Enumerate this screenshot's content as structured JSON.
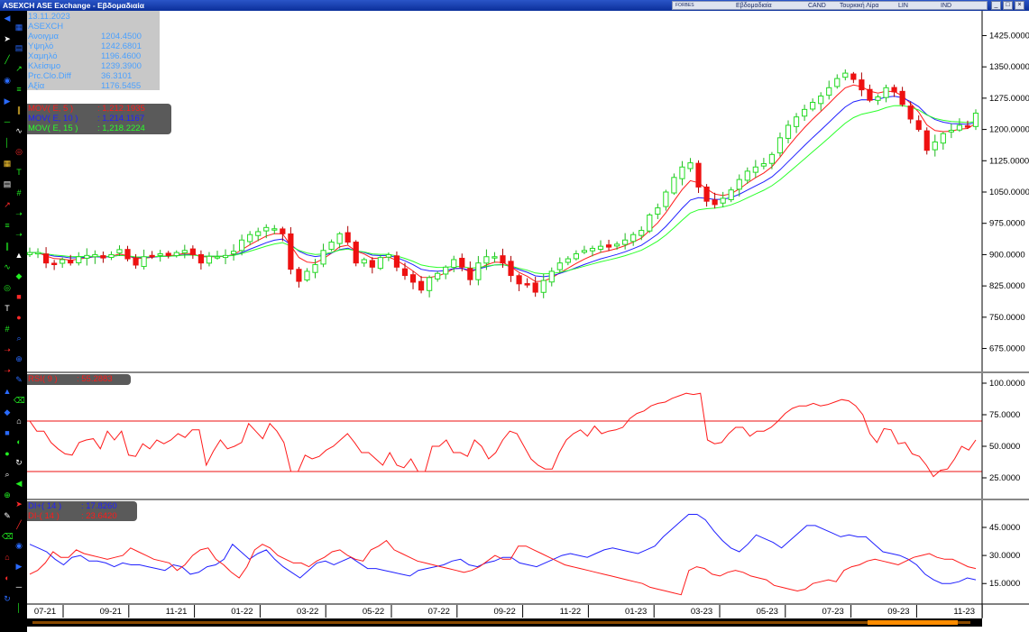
{
  "window": {
    "title": "ASEXCH ASE Exchange - Εβδομαδιαία",
    "status": {
      "source": "FORBES",
      "period": "Εβδομαδιαία",
      "chart_style": "CAND",
      "currency": "Τουρκική Λίρα",
      "scale": "LIN",
      "mode": "IND"
    },
    "buttons": [
      "_",
      "□",
      "×"
    ]
  },
  "toolbar_icons": [
    "arrow-left-icon",
    "pointer-icon",
    "trend-line-icon",
    "globe-icon",
    "arrow-right-icon",
    "hline-icon",
    "vline-icon",
    "calendar-icon",
    "doc-icon",
    "ray-icon",
    "fib-icon",
    "channel-icon",
    "wave-icon",
    "cycle-icon",
    "text-icon",
    "grid-icon",
    "arrow-icon",
    "arrow-icon",
    "triangle-icon",
    "diamond-icon",
    "square-icon",
    "circle-icon",
    "magnify-icon",
    "zoom-icon",
    "pencil-icon",
    "eraser-icon",
    "lock-icon",
    "color-icon",
    "refresh-icon"
  ],
  "ohlc_box": {
    "date": "13.11.2023",
    "symbol": "ASEXCH",
    "rows": [
      {
        "label": "Ανοιγμα",
        "value": "1204.4500"
      },
      {
        "label": "Υψηλό",
        "value": "1242.6801"
      },
      {
        "label": "Χαμηλό",
        "value": "1196.4600"
      },
      {
        "label": "Κλείσιμο",
        "value": "1239.3900"
      },
      {
        "label": "Prc.Clo.Diff",
        "value": "36.3101"
      },
      {
        "label": "Αξία",
        "value": "1176.5455"
      }
    ]
  },
  "ma_box": {
    "rows": [
      {
        "label": "MOV( E, 5 )",
        "value": ": 1,212.1935",
        "color": "#ff1a1a"
      },
      {
        "label": "MOV( E, 10 )",
        "value": ": 1,214.1167",
        "color": "#2020ff"
      },
      {
        "label": "MOV( E, 15 )",
        "value": ": 1,218.2224",
        "color": "#2aff2a"
      }
    ]
  },
  "rsi_box": {
    "label": "RSI( 9 )",
    "value": ": 55.2883",
    "color": "#ff1a1a"
  },
  "dmi_box": {
    "rows": [
      {
        "label": "DI+( 14 )",
        "value": ": 17.8260",
        "color": "#2020ff"
      },
      {
        "label": "DI-( 14 )",
        "value": ": 23.6420",
        "color": "#ff1a1a"
      }
    ]
  },
  "chart_data": [
    {
      "type": "candlestick",
      "title": "ASEXCH",
      "y_ticks": [
        675,
        750,
        825,
        900,
        975,
        1050,
        1125,
        1200,
        1275,
        1350,
        1425
      ],
      "ylim": [
        620,
        1480
      ],
      "x_ticks": [
        "07-21",
        "09-21",
        "11-21",
        "01-22",
        "03-22",
        "05-22",
        "07-22",
        "09-22",
        "11-22",
        "01-23",
        "03-23",
        "05-23",
        "07-23",
        "09-23",
        "11-23"
      ],
      "grid": false,
      "series": [
        {
          "name": "MOV( E, 5 )",
          "color": "#ff1a1a"
        },
        {
          "name": "MOV( E, 10 )",
          "color": "#2020ff"
        },
        {
          "name": "MOV( E, 15 )",
          "color": "#2aff2a"
        }
      ],
      "close": [
        905,
        905,
        880,
        878,
        888,
        880,
        895,
        898,
        900,
        892,
        900,
        912,
        890,
        875,
        895,
        897,
        902,
        898,
        905,
        910,
        900,
        880,
        896,
        895,
        898,
        908,
        935,
        948,
        955,
        965,
        962,
        950,
        865,
        836,
        860,
        876,
        910,
        930,
        950,
        930,
        880,
        888,
        870,
        893,
        900,
        870,
        850,
        834,
        815,
        845,
        855,
        870,
        888,
        870,
        840,
        880,
        895,
        895,
        880,
        850,
        830,
        830,
        810,
        838,
        860,
        880,
        890,
        902,
        910,
        915,
        920,
        918,
        925,
        935,
        948,
        958,
        995,
        1012,
        1050,
        1085,
        1110,
        1120,
        1062,
        1028,
        1020,
        1035,
        1055,
        1080,
        1100,
        1110,
        1118,
        1140,
        1180,
        1210,
        1230,
        1248,
        1265,
        1280,
        1300,
        1322,
        1335,
        1320,
        1295,
        1270,
        1278,
        1300,
        1290,
        1260,
        1225,
        1200,
        1150,
        1170,
        1190,
        1198,
        1210,
        1206,
        1239
      ]
    },
    {
      "type": "line",
      "title": "RSI( 9 )",
      "y_ticks": [
        25,
        50,
        75,
        100
      ],
      "ylim": [
        10,
        105
      ],
      "reference_lines": [
        70,
        30
      ],
      "series": [
        {
          "name": "RSI( 9 )",
          "color": "#ff1a1a",
          "values": [
            70,
            62,
            62,
            53,
            48,
            44,
            43,
            53,
            55,
            56,
            48,
            62,
            55,
            62,
            43,
            42,
            52,
            48,
            55,
            52,
            55,
            60,
            57,
            63,
            63,
            35,
            46,
            55,
            48,
            50,
            53,
            68,
            62,
            56,
            68,
            62,
            53,
            30,
            30,
            43,
            40,
            42,
            47,
            50,
            55,
            60,
            53,
            45,
            45,
            40,
            35,
            45,
            35,
            33,
            40,
            30,
            30,
            50,
            50,
            55,
            45,
            45,
            42,
            55,
            50,
            40,
            45,
            55,
            62,
            60,
            50,
            40,
            35,
            32,
            32,
            45,
            55,
            60,
            63,
            58,
            66,
            60,
            62,
            63,
            65,
            72,
            76,
            78,
            82,
            84,
            85,
            88,
            90,
            92,
            91,
            92,
            55,
            52,
            53,
            60,
            65,
            65,
            58,
            62,
            62,
            65,
            70,
            76,
            80,
            82,
            82,
            84,
            82,
            83,
            85,
            87,
            86,
            82,
            75,
            60,
            53,
            64,
            63,
            52,
            53,
            44,
            42,
            35,
            26,
            31,
            32,
            40,
            50,
            47,
            55
          ]
        }
      ]
    },
    {
      "type": "line",
      "title": "DMI",
      "y_ticks": [
        15,
        30,
        45
      ],
      "ylim": [
        5,
        58
      ],
      "series": [
        {
          "name": "DI+( 14 )",
          "color": "#2020ff",
          "values": [
            36,
            34,
            32,
            28,
            25,
            29,
            30,
            27,
            27,
            26,
            24,
            26,
            25,
            25,
            24,
            23,
            22,
            25,
            24,
            20,
            21,
            24,
            25,
            28,
            36,
            32,
            28,
            31,
            33,
            28,
            24,
            21,
            18,
            22,
            26,
            27,
            25,
            27,
            29,
            26,
            23,
            23,
            22,
            21,
            20,
            19,
            22,
            23,
            24,
            25,
            27,
            28,
            25,
            24,
            26,
            27,
            29,
            29,
            26,
            25,
            24,
            26,
            28,
            30,
            31,
            30,
            29,
            31,
            33,
            34,
            33,
            32,
            31,
            33,
            35,
            40,
            44,
            48,
            52,
            52,
            49,
            43,
            38,
            34,
            32,
            36,
            41,
            39,
            37,
            34,
            38,
            42,
            46,
            46,
            44,
            42,
            40,
            41,
            40,
            40,
            36,
            32,
            31,
            30,
            28,
            25,
            20,
            17,
            15,
            15,
            16,
            18,
            17
          ]
        },
        {
          "name": "DI-( 14 )",
          "color": "#ff1a1a",
          "values": [
            20,
            22,
            26,
            32,
            29,
            29,
            33,
            31,
            30,
            29,
            28,
            29,
            30,
            34,
            32,
            30,
            28,
            27,
            26,
            22,
            25,
            30,
            33,
            34,
            28,
            25,
            21,
            18,
            24,
            33,
            36,
            34,
            30,
            28,
            26,
            26,
            24,
            27,
            29,
            32,
            33,
            30,
            28,
            27,
            33,
            35,
            38,
            33,
            31,
            29,
            27,
            26,
            25,
            24,
            23,
            22,
            21,
            22,
            24,
            27,
            30,
            28,
            28,
            35,
            35,
            33,
            31,
            29,
            27,
            25,
            24,
            23,
            22,
            21,
            20,
            19,
            18,
            17,
            16,
            15,
            13,
            12,
            11,
            10,
            9,
            22,
            24,
            23,
            20,
            19,
            21,
            22,
            21,
            19,
            18,
            17,
            14,
            13,
            12,
            11,
            12,
            15,
            16,
            17,
            16,
            22,
            24,
            25,
            27,
            28,
            27,
            26,
            25,
            27,
            29,
            30,
            31,
            29,
            28,
            28,
            26,
            24,
            23
          ]
        }
      ]
    }
  ]
}
